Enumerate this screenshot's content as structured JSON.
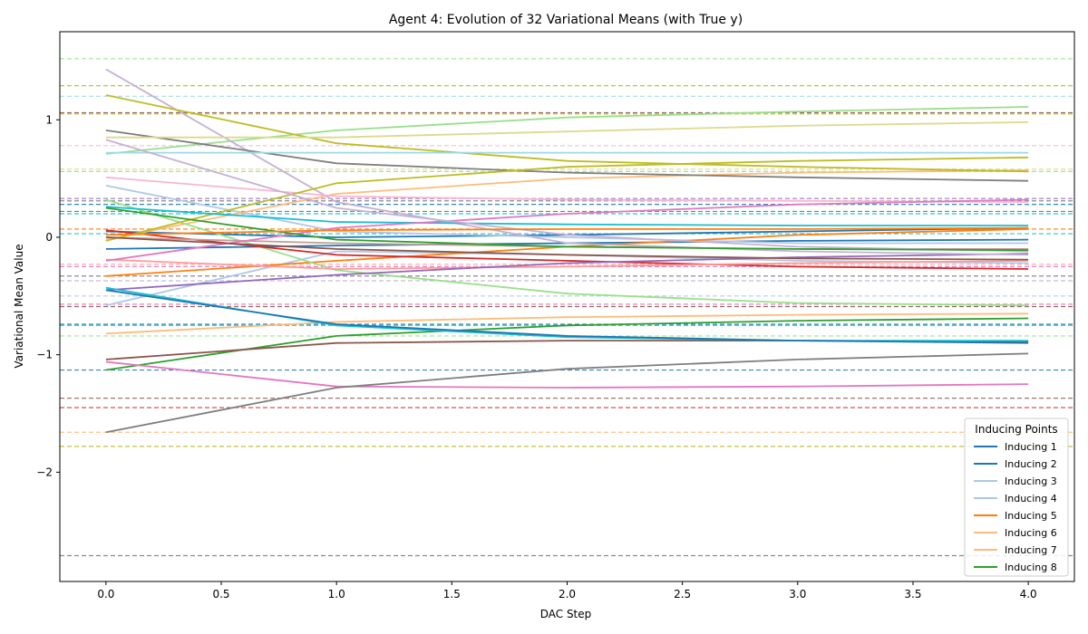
{
  "chart_data": {
    "type": "line",
    "title": "Agent 4: Evolution of 32 Variational Means (with True y)",
    "xlabel": "DAC Step",
    "ylabel": "Variational Mean Value",
    "xlim": [
      -0.2,
      4.2
    ],
    "ylim": [
      -2.93,
      1.75
    ],
    "xticks": [
      0.0,
      0.5,
      1.0,
      1.5,
      2.0,
      2.5,
      3.0,
      3.5,
      4.0
    ],
    "xtick_labels": [
      "0.0",
      "0.5",
      "1.0",
      "1.5",
      "2.0",
      "2.5",
      "3.0",
      "3.5",
      "4.0"
    ],
    "yticks": [
      -2,
      -1,
      0,
      1
    ],
    "ytick_labels": [
      "−2",
      "−1",
      "0",
      "1"
    ],
    "grid": false,
    "x": [
      0,
      1,
      2,
      3,
      4
    ],
    "legend": {
      "title": "Inducing Points",
      "placement": "lower-right",
      "entries": [
        {
          "label": "Inducing 1",
          "color": "#1f77b4"
        },
        {
          "label": "Inducing 2",
          "color": "#1f77b4"
        },
        {
          "label": "Inducing 3",
          "color": "#aec7e8"
        },
        {
          "label": "Inducing 4",
          "color": "#aec7e8"
        },
        {
          "label": "Inducing 5",
          "color": "#ff7f0e"
        },
        {
          "label": "Inducing 6",
          "color": "#ffbb78"
        },
        {
          "label": "Inducing 7",
          "color": "#ffbb78"
        },
        {
          "label": "Inducing 8",
          "color": "#2ca02c"
        }
      ]
    },
    "series": [
      {
        "color": "#1f77b4",
        "values": [
          -0.1,
          -0.07,
          -0.05,
          -0.03,
          -0.02
        ]
      },
      {
        "color": "#1f77b4",
        "values": [
          0.05,
          0.0,
          0.02,
          0.05,
          0.08
        ]
      },
      {
        "color": "#aec7e8",
        "values": [
          0.44,
          0.05,
          0.0,
          -0.05,
          -0.05
        ]
      },
      {
        "color": "#aec7e8",
        "values": [
          -0.58,
          -0.12,
          -0.15,
          -0.2,
          -0.22
        ]
      },
      {
        "color": "#ff7f0e",
        "values": [
          -0.33,
          -0.2,
          -0.08,
          0.02,
          0.07
        ]
      },
      {
        "color": "#ffbb78",
        "values": [
          -0.02,
          0.37,
          0.5,
          0.55,
          0.57
        ]
      },
      {
        "color": "#ffbb78",
        "values": [
          -0.82,
          -0.72,
          -0.68,
          -0.66,
          -0.65
        ]
      },
      {
        "color": "#2ca02c",
        "values": [
          -1.13,
          -0.84,
          -0.75,
          -0.71,
          -0.69
        ]
      },
      {
        "color": "#98df8a",
        "values": [
          0.71,
          0.91,
          1.02,
          1.07,
          1.11
        ]
      },
      {
        "color": "#98df8a",
        "values": [
          0.32,
          -0.28,
          -0.48,
          -0.56,
          -0.58
        ]
      },
      {
        "color": "#d62728",
        "values": [
          0.06,
          -0.15,
          -0.2,
          -0.25,
          -0.27
        ]
      },
      {
        "color": "#ff9896",
        "values": [
          -0.19,
          -0.27,
          -0.25,
          -0.22,
          -0.2
        ]
      },
      {
        "color": "#9467bd",
        "values": [
          -0.45,
          -0.32,
          -0.22,
          -0.17,
          -0.14
        ]
      },
      {
        "color": "#c5b0d5",
        "values": [
          1.43,
          0.3,
          -0.05,
          -0.12,
          -0.15
        ]
      },
      {
        "color": "#8c564b",
        "values": [
          -1.04,
          -0.9,
          -0.88,
          -0.88,
          -0.89
        ]
      },
      {
        "color": "#c49c94",
        "values": [
          0.0,
          -0.05,
          -0.08,
          -0.1,
          -0.1
        ]
      },
      {
        "color": "#e377c2",
        "values": [
          -1.06,
          -1.27,
          -1.28,
          -1.27,
          -1.25
        ]
      },
      {
        "color": "#f7b6d2",
        "values": [
          0.51,
          0.35,
          0.32,
          0.31,
          0.3
        ]
      },
      {
        "color": "#7f7f7f",
        "values": [
          -1.66,
          -1.28,
          -1.12,
          -1.04,
          -0.99
        ]
      },
      {
        "color": "#7f7f7f",
        "values": [
          0.91,
          0.63,
          0.55,
          0.51,
          0.48
        ]
      },
      {
        "color": "#bcbd22",
        "values": [
          1.21,
          0.8,
          0.65,
          0.6,
          0.56
        ]
      },
      {
        "color": "#bcbd22",
        "values": [
          -0.03,
          0.46,
          0.6,
          0.65,
          0.68
        ]
      },
      {
        "color": "#dbdb8d",
        "values": [
          0.85,
          0.85,
          0.9,
          0.95,
          0.98
        ]
      },
      {
        "color": "#17becf",
        "values": [
          -0.43,
          -0.75,
          -0.85,
          -0.88,
          -0.88
        ]
      },
      {
        "color": "#17becf",
        "values": [
          0.26,
          0.13,
          0.11,
          0.1,
          0.1
        ]
      },
      {
        "color": "#9edae5",
        "values": [
          0.72,
          0.72,
          0.72,
          0.72,
          0.72
        ]
      },
      {
        "color": "#e377c2",
        "values": [
          -0.2,
          0.08,
          0.2,
          0.28,
          0.32
        ]
      },
      {
        "color": "#c5b0d5",
        "values": [
          0.83,
          0.25,
          0.02,
          -0.08,
          -0.12
        ]
      },
      {
        "color": "#8c564b",
        "values": [
          0.0,
          -0.1,
          -0.15,
          -0.18,
          -0.19
        ]
      },
      {
        "color": "#1f77b4",
        "values": [
          -0.45,
          -0.74,
          -0.84,
          -0.88,
          -0.9
        ]
      },
      {
        "color": "#2ca02c",
        "values": [
          0.25,
          -0.02,
          -0.08,
          -0.1,
          -0.11
        ]
      },
      {
        "color": "#ff7f0e",
        "values": [
          0.02,
          0.06,
          0.07,
          0.07,
          0.08
        ]
      }
    ],
    "true_y_lines": [
      {
        "value": 1.52,
        "color": "#98df8a"
      },
      {
        "value": 1.29,
        "color": "#bcbd22"
      },
      {
        "value": 1.2,
        "color": "#9edae5"
      },
      {
        "value": 1.06,
        "color": "#8c564b"
      },
      {
        "value": 1.05,
        "color": "#bcbd22"
      },
      {
        "value": 0.78,
        "color": "#f7b6d2"
      },
      {
        "value": 0.58,
        "color": "#dbdb8d"
      },
      {
        "value": 0.56,
        "color": "#98df8a"
      },
      {
        "value": 0.33,
        "color": "#9467bd"
      },
      {
        "value": 0.31,
        "color": "#7f7f7f"
      },
      {
        "value": 0.28,
        "color": "#1f77b4"
      },
      {
        "value": 0.22,
        "color": "#2ca02c"
      },
      {
        "value": 0.2,
        "color": "#17becf"
      },
      {
        "value": 0.07,
        "color": "#ff7f0e"
      },
      {
        "value": 0.03,
        "color": "#17becf"
      },
      {
        "value": -0.23,
        "color": "#ff9896"
      },
      {
        "value": -0.25,
        "color": "#e377c2"
      },
      {
        "value": -0.33,
        "color": "#7f7f7f"
      },
      {
        "value": -0.37,
        "color": "#c5b0d5"
      },
      {
        "value": -0.5,
        "color": "#aec7e8"
      },
      {
        "value": -0.57,
        "color": "#e377c2"
      },
      {
        "value": -0.59,
        "color": "#8c564b"
      },
      {
        "value": -0.74,
        "color": "#1f77b4"
      },
      {
        "value": -0.75,
        "color": "#17becf"
      },
      {
        "value": -0.84,
        "color": "#98df8a"
      },
      {
        "value": -1.13,
        "color": "#1f77b4"
      },
      {
        "value": -1.37,
        "color": "#8c564b"
      },
      {
        "value": -1.45,
        "color": "#d62728"
      },
      {
        "value": -1.66,
        "color": "#ffbb78"
      },
      {
        "value": -1.78,
        "color": "#bcbd22"
      },
      {
        "value": -2.71,
        "color": "#7f7f7f"
      }
    ]
  }
}
